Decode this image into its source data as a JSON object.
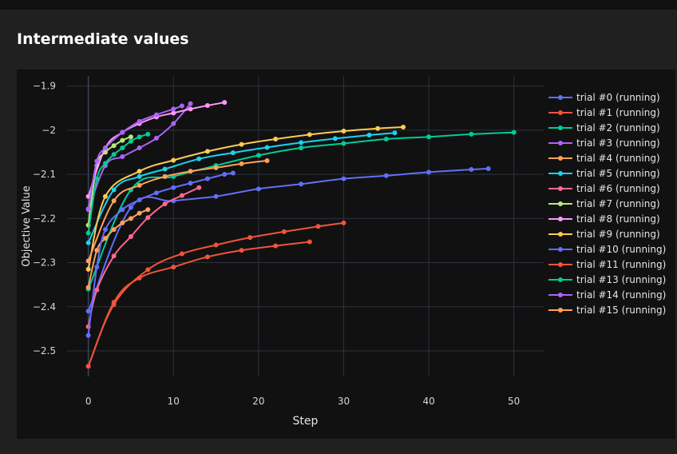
{
  "page": {
    "title": "Intermediate values"
  },
  "chart_data": {
    "type": "line",
    "xlabel": "Step",
    "ylabel": "Objective Value",
    "xlim": [
      -2.5,
      53.5
    ],
    "ylim": [
      -2.558,
      -1.877
    ],
    "x_ticks": [
      0,
      10,
      20,
      30,
      40,
      50
    ],
    "y_ticks": [
      -2.5,
      -2.4,
      -2.3,
      -2.2,
      -2.1,
      -2,
      -1.9
    ],
    "x_tick_labels": [
      "0",
      "10",
      "20",
      "30",
      "40",
      "50"
    ],
    "y_tick_labels": [
      "−2.5",
      "−2.4",
      "−2.3",
      "−2.2",
      "−2.1",
      "−2",
      "−1.9"
    ],
    "grid": true,
    "legend_position": "right",
    "series": [
      {
        "name": "trial #0 (running)",
        "color": "#636efa",
        "x": [
          0,
          5,
          10,
          15,
          20,
          25,
          30,
          35,
          40,
          45,
          47
        ],
        "y": [
          -2.41,
          -2.175,
          -2.16,
          -2.15,
          -2.133,
          -2.122,
          -2.11,
          -2.103,
          -2.095,
          -2.089,
          -2.087
        ]
      },
      {
        "name": "trial #1 (running)",
        "color": "#ef553b",
        "x": [
          0,
          3,
          7,
          11,
          15,
          19,
          23,
          27,
          30
        ],
        "y": [
          -2.535,
          -2.395,
          -2.316,
          -2.28,
          -2.26,
          -2.243,
          -2.23,
          -2.218,
          -2.21
        ]
      },
      {
        "name": "trial #2 (running)",
        "color": "#00cc96",
        "x": [
          0,
          5,
          10,
          15,
          20,
          25,
          30,
          35,
          40,
          45,
          50
        ],
        "y": [
          -2.36,
          -2.135,
          -2.105,
          -2.08,
          -2.057,
          -2.04,
          -2.03,
          -2.02,
          -2.015,
          -2.009,
          -2.005
        ]
      },
      {
        "name": "trial #3 (running)",
        "color": "#ab63fa",
        "x": [
          0,
          2,
          4,
          6,
          8,
          10,
          12
        ],
        "y": [
          -2.18,
          -2.08,
          -2.06,
          -2.04,
          -2.018,
          -1.985,
          -1.94
        ]
      },
      {
        "name": "trial #4 (running)",
        "color": "#ffa15a",
        "x": [
          0,
          1,
          2,
          3,
          4,
          5,
          6,
          7
        ],
        "y": [
          -2.356,
          -2.272,
          -2.245,
          -2.225,
          -2.21,
          -2.2,
          -2.188,
          -2.18
        ]
      },
      {
        "name": "trial #5 (running)",
        "color": "#19d3f3",
        "x": [
          0,
          3,
          6,
          9,
          13,
          17,
          21,
          25,
          29,
          33,
          36
        ],
        "y": [
          -2.255,
          -2.135,
          -2.105,
          -2.088,
          -2.065,
          -2.051,
          -2.039,
          -2.028,
          -2.019,
          -2.011,
          -2.006
        ]
      },
      {
        "name": "trial #6 (running)",
        "color": "#ff6692",
        "x": [
          0,
          1,
          3,
          5,
          7,
          9,
          11,
          13
        ],
        "y": [
          -2.445,
          -2.362,
          -2.285,
          -2.241,
          -2.198,
          -2.167,
          -2.148,
          -2.13
        ]
      },
      {
        "name": "trial #7 (running)",
        "color": "#b6e880",
        "x": [
          0,
          1,
          2,
          3,
          4,
          5
        ],
        "y": [
          -2.215,
          -2.08,
          -2.05,
          -2.035,
          -2.023,
          -2.015
        ]
      },
      {
        "name": "trial #8 (running)",
        "color": "#ff97ff",
        "x": [
          0,
          2,
          4,
          6,
          8,
          10,
          12,
          14,
          16
        ],
        "y": [
          -2.15,
          -2.04,
          -2.005,
          -1.985,
          -1.97,
          -1.961,
          -1.952,
          -1.944,
          -1.937
        ]
      },
      {
        "name": "trial #9 (running)",
        "color": "#fecb52",
        "x": [
          0,
          2,
          6,
          10,
          14,
          18,
          22,
          26,
          30,
          34,
          37
        ],
        "y": [
          -2.315,
          -2.15,
          -2.093,
          -2.068,
          -2.048,
          -2.032,
          -2.02,
          -2.01,
          -2.002,
          -1.996,
          -1.993
        ]
      },
      {
        "name": "trial #10 (running)",
        "color": "#636efa",
        "x": [
          0,
          1,
          2,
          4,
          6,
          8,
          10,
          12,
          14,
          16,
          17
        ],
        "y": [
          -2.465,
          -2.31,
          -2.225,
          -2.18,
          -2.158,
          -2.142,
          -2.13,
          -2.12,
          -2.11,
          -2.1,
          -2.097
        ]
      },
      {
        "name": "trial #11 (running)",
        "color": "#ef553b",
        "x": [
          0,
          3,
          6,
          10,
          14,
          18,
          22,
          26
        ],
        "y": [
          -2.535,
          -2.39,
          -2.335,
          -2.31,
          -2.287,
          -2.272,
          -2.262,
          -2.253
        ]
      },
      {
        "name": "trial #13 (running)",
        "color": "#00cc96",
        "x": [
          0,
          1,
          2,
          3,
          4,
          5,
          6,
          7
        ],
        "y": [
          -2.233,
          -2.11,
          -2.075,
          -2.055,
          -2.04,
          -2.025,
          -2.015,
          -2.009
        ]
      },
      {
        "name": "trial #14 (running)",
        "color": "#ab63fa",
        "x": [
          0,
          1,
          2,
          4,
          6,
          8,
          10,
          11
        ],
        "y": [
          -2.178,
          -2.07,
          -2.04,
          -2.005,
          -1.98,
          -1.965,
          -1.952,
          -1.945
        ]
      },
      {
        "name": "trial #15 (running)",
        "color": "#ffa15a",
        "x": [
          0,
          3,
          6,
          9,
          12,
          15,
          18,
          21
        ],
        "y": [
          -2.296,
          -2.16,
          -2.125,
          -2.105,
          -2.093,
          -2.085,
          -2.076,
          -2.069
        ]
      }
    ]
  }
}
